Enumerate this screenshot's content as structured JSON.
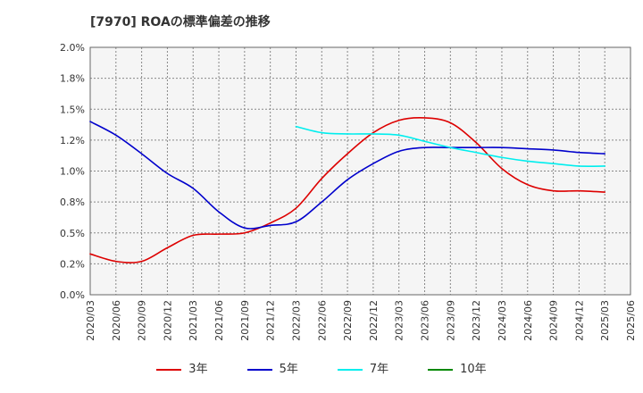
{
  "chart_data": {
    "type": "line",
    "title": "[7970]  ROAの標準偏差の推移",
    "xlabel": "",
    "ylabel": "",
    "x_ticks": [
      "2020/03",
      "2020/06",
      "2020/09",
      "2020/12",
      "2021/03",
      "2021/06",
      "2021/09",
      "2021/12",
      "2022/03",
      "2022/06",
      "2022/09",
      "2022/12",
      "2023/03",
      "2023/06",
      "2023/09",
      "2023/12",
      "2024/03",
      "2024/06",
      "2024/09",
      "2024/12",
      "2025/03",
      "2025/06"
    ],
    "y_ticks": [
      "0.0%",
      "0.2%",
      "0.5%",
      "0.8%",
      "1.0%",
      "1.2%",
      "1.5%",
      "1.8%",
      "2.0%"
    ],
    "ylim": [
      0,
      2.0
    ],
    "grid": true,
    "legend_position": "bottom",
    "series": [
      {
        "name": "3年",
        "color": "#dd0000",
        "x": [
          "2020/03",
          "2020/06",
          "2020/09",
          "2020/12",
          "2021/03",
          "2021/06",
          "2021/09",
          "2021/12",
          "2022/03",
          "2022/06",
          "2022/09",
          "2022/12",
          "2023/03",
          "2023/06",
          "2023/09",
          "2023/12",
          "2024/03",
          "2024/06",
          "2024/09",
          "2024/12",
          "2025/03"
        ],
        "values": [
          0.33,
          0.27,
          0.27,
          0.38,
          0.48,
          0.49,
          0.5,
          0.58,
          0.7,
          0.94,
          1.14,
          1.31,
          1.41,
          1.43,
          1.39,
          1.23,
          1.02,
          0.89,
          0.84,
          0.84,
          0.83
        ]
      },
      {
        "name": "5年",
        "color": "#0000cc",
        "x": [
          "2020/03",
          "2020/06",
          "2020/09",
          "2020/12",
          "2021/03",
          "2021/06",
          "2021/09",
          "2021/12",
          "2022/03",
          "2022/06",
          "2022/09",
          "2022/12",
          "2023/03",
          "2023/06",
          "2023/09",
          "2023/12",
          "2024/03",
          "2024/06",
          "2024/09",
          "2024/12",
          "2025/03"
        ],
        "values": [
          1.4,
          1.29,
          1.14,
          0.98,
          0.86,
          0.67,
          0.54,
          0.56,
          0.59,
          0.75,
          0.93,
          1.06,
          1.16,
          1.19,
          1.19,
          1.19,
          1.19,
          1.18,
          1.17,
          1.15,
          1.14
        ]
      },
      {
        "name": "7年",
        "color": "#00eeee",
        "x": [
          "2022/03",
          "2022/06",
          "2022/09",
          "2022/12",
          "2023/03",
          "2023/06",
          "2023/09",
          "2023/12",
          "2024/03",
          "2024/06",
          "2024/09",
          "2024/12",
          "2025/03"
        ],
        "values": [
          1.36,
          1.31,
          1.3,
          1.3,
          1.29,
          1.24,
          1.19,
          1.15,
          1.11,
          1.08,
          1.06,
          1.04,
          1.04
        ]
      },
      {
        "name": "10年",
        "color": "#008800",
        "x": [],
        "values": []
      }
    ]
  }
}
